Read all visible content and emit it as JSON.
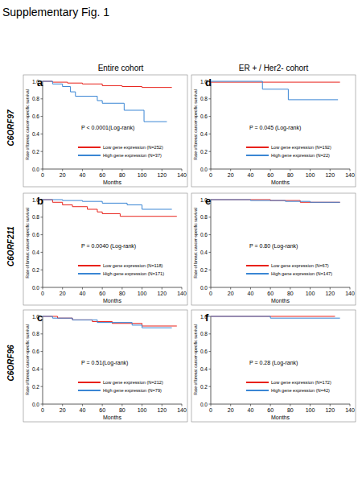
{
  "header": {
    "title": "Supplementary Fig. 1",
    "columns": [
      "Entire cohort",
      "ER + / Her2- cohort"
    ],
    "rows": [
      "C6ORF97",
      "C6ORF211",
      "C6ORF96"
    ]
  },
  "chart_data": [
    {
      "type": "line",
      "line_style": "step",
      "legend": "bottom",
      "label": "a",
      "annotation": "P < 0.0001(Log-rank)",
      "x_label": "Months",
      "y_label": "Rate of breast cancer-specific survival",
      "xlim": [
        0,
        140
      ],
      "xticks": [
        0,
        20,
        40,
        60,
        80,
        100,
        120,
        140
      ],
      "ylim": [
        0,
        1
      ],
      "yticks": [
        {
          "value": 0,
          "label": "0.0"
        },
        {
          "value": 0.2,
          "label": "0.2"
        },
        {
          "value": 0.4,
          "label": "0.4"
        },
        {
          "value": 0.6,
          "label": "0.6"
        },
        {
          "value": 0.8,
          "label": "0.8"
        },
        {
          "value": 1,
          "label": "1.0"
        }
      ],
      "series": [
        {
          "name": "Low gene expression (N=252)",
          "color": "#e8221b",
          "x": [
            0,
            10,
            25,
            40,
            60,
            80,
            100,
            130
          ],
          "values": [
            1,
            0.99,
            0.98,
            0.97,
            0.95,
            0.94,
            0.93,
            0.93
          ]
        },
        {
          "name": "High gene expression (N=37)",
          "color": "#3a86d4",
          "x": [
            0,
            10,
            20,
            28,
            33,
            55,
            60,
            82,
            102,
            125
          ],
          "values": [
            1,
            0.97,
            0.94,
            0.88,
            0.83,
            0.78,
            0.75,
            0.67,
            0.54,
            0.54
          ]
        }
      ]
    },
    {
      "type": "line",
      "line_style": "step",
      "legend": "bottom",
      "label": "b",
      "annotation": "P = 0.0040 (Log-rank)",
      "x_label": "Months",
      "y_label": "Rate of breast cancer-specific survival",
      "xlim": [
        0,
        140
      ],
      "xticks": [
        0,
        20,
        40,
        60,
        80,
        100,
        120,
        140
      ],
      "ylim": [
        0,
        1
      ],
      "yticks": [
        {
          "value": 0,
          "label": "0.0"
        },
        {
          "value": 0.2,
          "label": "0.2"
        },
        {
          "value": 0.4,
          "label": "0.4"
        },
        {
          "value": 0.6,
          "label": "0.6"
        },
        {
          "value": 0.8,
          "label": "0.8"
        },
        {
          "value": 1,
          "label": "1.0"
        }
      ],
      "series": [
        {
          "name": "Low gene expression (N=118)",
          "color": "#e8221b",
          "x": [
            0,
            10,
            20,
            30,
            45,
            55,
            60,
            78,
            135
          ],
          "values": [
            1,
            0.97,
            0.94,
            0.92,
            0.89,
            0.86,
            0.84,
            0.81,
            0.81
          ]
        },
        {
          "name": "High gene expression (N=171)",
          "color": "#3a86d4",
          "x": [
            0,
            20,
            40,
            60,
            85,
            100,
            130
          ],
          "values": [
            1,
            0.99,
            0.98,
            0.96,
            0.94,
            0.89,
            0.89
          ]
        }
      ]
    },
    {
      "type": "line",
      "line_style": "step",
      "legend": "bottom",
      "label": "c",
      "annotation": "P = 0.51(Log-rank)",
      "x_label": "Months",
      "y_label": "Rate of breast cancer-specific survival",
      "xlim": [
        0,
        140
      ],
      "xticks": [
        0,
        20,
        40,
        60,
        80,
        100,
        120,
        140
      ],
      "ylim": [
        0,
        1
      ],
      "yticks": [
        {
          "value": 0,
          "label": "0.0"
        },
        {
          "value": 0.2,
          "label": "0.2"
        },
        {
          "value": 0.4,
          "label": "0.4"
        },
        {
          "value": 0.6,
          "label": "0.6"
        },
        {
          "value": 0.8,
          "label": "0.8"
        },
        {
          "value": 1,
          "label": "1.0"
        }
      ],
      "series": [
        {
          "name": "Low gene expression (N=212)",
          "color": "#e8221b",
          "x": [
            0,
            15,
            30,
            50,
            70,
            100,
            135
          ],
          "values": [
            1,
            0.98,
            0.96,
            0.94,
            0.92,
            0.89,
            0.89
          ]
        },
        {
          "name": "High gene expression (N=79)",
          "color": "#3a86d4",
          "x": [
            0,
            10,
            30,
            55,
            90,
            100,
            130
          ],
          "values": [
            1,
            0.98,
            0.96,
            0.93,
            0.9,
            0.87,
            0.87
          ]
        }
      ]
    },
    {
      "type": "line",
      "line_style": "step",
      "legend": "bottom",
      "label": "d",
      "annotation": "P = 0.045 (Log-rank)",
      "x_label": "Months",
      "y_label": "Rate of breast cancer-specific survival",
      "xlim": [
        0,
        140
      ],
      "xticks": [
        0,
        20,
        40,
        60,
        80,
        100,
        120,
        140
      ],
      "ylim": [
        0,
        1
      ],
      "yticks": [
        {
          "value": 0,
          "label": "0.0"
        },
        {
          "value": 0.2,
          "label": "0.2"
        },
        {
          "value": 0.4,
          "label": "0.4"
        },
        {
          "value": 0.6,
          "label": "0.6"
        },
        {
          "value": 0.8,
          "label": "0.8"
        },
        {
          "value": 1,
          "label": "1.0"
        }
      ],
      "series": [
        {
          "name": "Low gene expression (N=192)",
          "color": "#e8221b",
          "x": [
            0,
            130
          ],
          "values": [
            0.99,
            0.99
          ]
        },
        {
          "name": "High gene expression (N=22)",
          "color": "#3a86d4",
          "x": [
            0,
            52,
            78,
            128
          ],
          "values": [
            1,
            0.91,
            0.79,
            0.79
          ]
        }
      ]
    },
    {
      "type": "line",
      "line_style": "step",
      "legend": "bottom",
      "label": "e",
      "annotation": "P = 0.80 (Log-rank)",
      "x_label": "Months",
      "y_label": "Rate of breast cancer-specific survival",
      "xlim": [
        0,
        140
      ],
      "xticks": [
        0,
        20,
        40,
        60,
        80,
        100,
        120,
        140
      ],
      "ylim": [
        0,
        1
      ],
      "yticks": [
        {
          "value": 0,
          "label": "0.0"
        },
        {
          "value": 0.2,
          "label": "0.2"
        },
        {
          "value": 0.4,
          "label": "0.4"
        },
        {
          "value": 0.6,
          "label": "0.6"
        },
        {
          "value": 0.8,
          "label": "0.8"
        },
        {
          "value": 1,
          "label": "1.0"
        }
      ],
      "series": [
        {
          "name": "Low gene expression (N=67)",
          "color": "#e8221b",
          "x": [
            0,
            60,
            90,
            130
          ],
          "values": [
            1,
            0.99,
            0.97,
            0.97
          ]
        },
        {
          "name": "High gene expression (N=147)",
          "color": "#3a86d4",
          "x": [
            0,
            40,
            75,
            100,
            130
          ],
          "values": [
            1,
            0.99,
            0.98,
            0.97,
            0.97
          ]
        }
      ]
    },
    {
      "type": "line",
      "line_style": "step",
      "legend": "bottom",
      "label": "f",
      "annotation": "P = 0.28 (Log-rank)",
      "x_label": "Months",
      "y_label": "Rate of breast cancer-specific survival",
      "xlim": [
        0,
        140
      ],
      "xticks": [
        0,
        20,
        40,
        60,
        80,
        100,
        120,
        140
      ],
      "ylim": [
        0,
        1
      ],
      "yticks": [
        {
          "value": 0,
          "label": "0.0"
        },
        {
          "value": 0.2,
          "label": "0.2"
        },
        {
          "value": 0.4,
          "label": "0.4"
        },
        {
          "value": 0.6,
          "label": "0.6"
        },
        {
          "value": 0.8,
          "label": "0.8"
        },
        {
          "value": 1,
          "label": "1.0"
        }
      ],
      "series": [
        {
          "name": "Low gene expression (N=172)",
          "color": "#e8221b",
          "x": [
            0,
            125
          ],
          "values": [
            1,
            1
          ]
        },
        {
          "name": "High gene expression (N=42)",
          "color": "#3a86d4",
          "x": [
            0,
            60,
            130
          ],
          "values": [
            1,
            0.98,
            0.98
          ]
        }
      ]
    }
  ]
}
